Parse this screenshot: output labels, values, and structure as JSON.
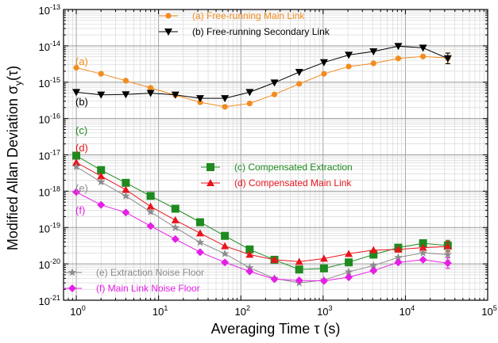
{
  "chart_data": {
    "type": "line",
    "xscale": "log",
    "yscale": "log",
    "xlim": [
      0.7,
      100000
    ],
    "ylim": [
      1e-21,
      1e-13
    ],
    "grid": true,
    "xlabel": "Averaging Time τ (s)",
    "ylabel": "Modified Allan Deviation σy(τ)",
    "xtick_labels": [
      {
        "base": "10",
        "exp": "0",
        "value": 1
      },
      {
        "base": "10",
        "exp": "1",
        "value": 10
      },
      {
        "base": "10",
        "exp": "2",
        "value": 100
      },
      {
        "base": "10",
        "exp": "3",
        "value": 1000
      },
      {
        "base": "10",
        "exp": "4",
        "value": 10000
      },
      {
        "base": "10",
        "exp": "5",
        "value": 100000
      }
    ],
    "ytick_labels": [
      {
        "base": "10",
        "exp": "-13",
        "value": 1e-13
      },
      {
        "base": "10",
        "exp": "-14",
        "value": 1e-14
      },
      {
        "base": "10",
        "exp": "-15",
        "value": 1e-15
      },
      {
        "base": "10",
        "exp": "-16",
        "value": 1e-16
      },
      {
        "base": "10",
        "exp": "-17",
        "value": 1e-17
      },
      {
        "base": "10",
        "exp": "-18",
        "value": 1e-18
      },
      {
        "base": "10",
        "exp": "-19",
        "value": 1e-19
      },
      {
        "base": "10",
        "exp": "-20",
        "value": 1e-20
      },
      {
        "base": "10",
        "exp": "-21",
        "value": 1e-21
      }
    ],
    "series": [
      {
        "name": "(a) Free-running Main Link",
        "tag": "(a)",
        "color": "#f28c1e",
        "marker": "circle",
        "x": [
          1,
          2,
          4,
          8,
          16,
          32,
          64,
          128,
          256,
          512,
          1024,
          2048,
          4096,
          8192,
          16384,
          32768
        ],
        "y": [
          2.5e-15,
          1.7e-15,
          1.1e-15,
          7e-16,
          4.4e-16,
          2.8e-16,
          2.1e-16,
          2.6e-16,
          4.6e-16,
          9e-16,
          1.7e-15,
          2.7e-15,
          3.3e-15,
          4.5e-15,
          5.1e-15,
          4.6e-15
        ]
      },
      {
        "name": "(b) Free-running Secondary Link",
        "tag": "(b)",
        "color": "#000000",
        "marker": "triangle-down",
        "x": [
          1,
          2,
          4,
          8,
          16,
          32,
          64,
          128,
          256,
          512,
          1024,
          2048,
          4096,
          8192,
          16384,
          32768
        ],
        "y": [
          5.3e-16,
          4.5e-16,
          4.6e-16,
          5e-16,
          4.5e-16,
          3.6e-16,
          3.6e-16,
          5.3e-16,
          9.7e-16,
          1.9e-15,
          3.5e-15,
          5.6e-15,
          7e-15,
          9.8e-15,
          8.8e-15,
          4.5e-15
        ]
      },
      {
        "name": "(c) Compensated Extraction",
        "tag": "(c)",
        "color": "#1f8a1f",
        "marker": "square",
        "x": [
          1,
          2,
          4,
          8,
          16,
          32,
          64,
          128,
          256,
          512,
          1024,
          2048,
          4096,
          8192,
          16384,
          32768
        ],
        "y": [
          9.5e-18,
          3.8e-18,
          1.7e-18,
          7.4e-19,
          3.3e-19,
          1.4e-19,
          5.9e-20,
          2.5e-20,
          1.3e-20,
          7e-21,
          7.5e-21,
          1.1e-20,
          1.8e-20,
          2.8e-20,
          3.7e-20,
          3.2e-20
        ]
      },
      {
        "name": "(d) Compensated Main Link",
        "tag": "(d)",
        "color": "#e8141c",
        "marker": "triangle-up",
        "x": [
          1,
          2,
          4,
          8,
          16,
          32,
          64,
          128,
          256,
          512,
          1024,
          2048,
          4096,
          8192,
          16384,
          32768
        ],
        "y": [
          6.2e-18,
          2.6e-18,
          1.1e-18,
          3.8e-19,
          1.6e-19,
          7e-20,
          3.1e-20,
          1.8e-20,
          1.3e-20,
          1.15e-20,
          1.4e-20,
          1.9e-20,
          2.4e-20,
          2.5e-20,
          2.8e-20,
          3e-20
        ]
      },
      {
        "name": "(e) Extraction Noise Floor",
        "tag": "(e)",
        "color": "#8c8c8c",
        "marker": "star",
        "x": [
          1,
          2,
          4,
          8,
          16,
          32,
          64,
          128,
          256,
          512,
          1024,
          2048,
          4096,
          8192,
          16384,
          32768
        ],
        "y": [
          4.7e-18,
          1.8e-18,
          7.4e-19,
          2.7e-19,
          1e-19,
          3.9e-20,
          1.9e-20,
          7.8e-21,
          4e-21,
          3e-21,
          3.6e-21,
          6e-21,
          9e-21,
          1.5e-20,
          2e-20,
          1.8e-20
        ]
      },
      {
        "name": "(f) Main Link Noise Floor",
        "tag": "(f)",
        "color": "#e61ee6",
        "marker": "diamond",
        "x": [
          1,
          2,
          4,
          8,
          16,
          32,
          64,
          128,
          256,
          512,
          1024,
          2048,
          4096,
          8192,
          16384,
          32768
        ],
        "y": [
          9.5e-19,
          4.2e-19,
          2.6e-19,
          1.1e-19,
          4.8e-20,
          2.1e-20,
          1.1e-20,
          6.2e-21,
          3.8e-21,
          3.5e-21,
          3.4e-21,
          4.3e-21,
          6.5e-21,
          1.1e-20,
          1.3e-20,
          1.05e-20
        ]
      }
    ]
  }
}
